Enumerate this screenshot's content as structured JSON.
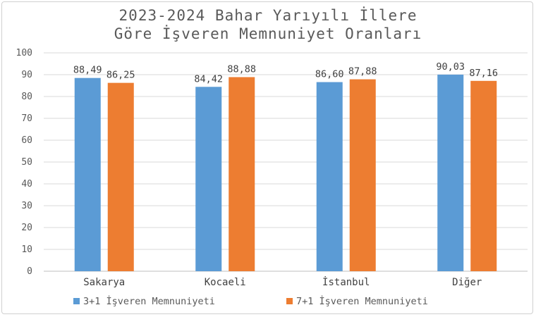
{
  "chart_data": {
    "type": "bar",
    "title_lines": [
      "2023-2024 Bahar Yarıyılı İllere",
      "Göre İşveren Memnuniyet Oranları"
    ],
    "categories": [
      "Sakarya",
      "Kocaeli",
      "İstanbul",
      "Diğer"
    ],
    "series": [
      {
        "name": "3+1 İşveren Memnuniyeti",
        "color": "#5B9BD5",
        "values": [
          88.49,
          84.42,
          86.6,
          90.03
        ],
        "labels": [
          "88,49",
          "84,42",
          "86,60",
          "90,03"
        ]
      },
      {
        "name": "7+1 İşveren Memnuniyeti",
        "color": "#ED7D31",
        "values": [
          86.25,
          88.88,
          87.88,
          87.16
        ],
        "labels": [
          "86,25",
          "88,88",
          "87,88",
          "87,16"
        ]
      }
    ],
    "ylim": [
      0,
      100
    ],
    "yticks": [
      0,
      10,
      20,
      30,
      40,
      50,
      60,
      70,
      80,
      90,
      100
    ],
    "grid": true,
    "legend": "bottom",
    "xlabel": "",
    "ylabel": ""
  }
}
